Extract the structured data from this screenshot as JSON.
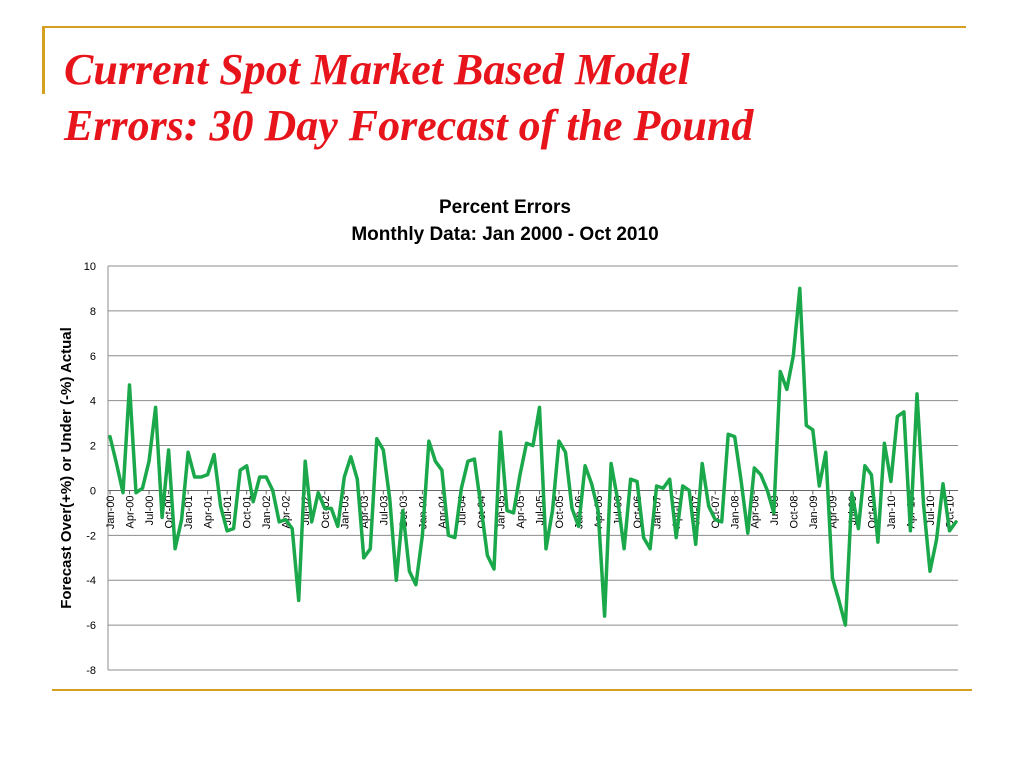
{
  "slide": {
    "title_line1": "Current Spot Market Based Model",
    "title_line2": "Errors: 30 Day Forecast of the Pound",
    "accent_color": "#d4a020",
    "title_color": "#e8141c"
  },
  "chart_data": {
    "type": "line",
    "title": "Percent Errors",
    "subtitle": "Monthly Data: Jan 2000 - Oct 2010",
    "xlabel": "",
    "ylabel": "Forecast Over(+%) or Under (-%) Actual",
    "ylim": [
      -8,
      10
    ],
    "yticks": [
      10,
      8,
      6,
      4,
      2,
      0,
      -2,
      -4,
      -6,
      -8
    ],
    "grid": true,
    "legend": "none",
    "line_color": "#1aa84a",
    "tick_labels": [
      "Jan-00",
      "Apr-00",
      "Jul-00",
      "Oct-00",
      "Jan-01",
      "Apr-01",
      "Jul-01",
      "Oct-01",
      "Jan-02",
      "Apr-02",
      "Jul-02",
      "Oct-02",
      "Jan-03",
      "Apr-03",
      "Jul-03",
      "Oct-03",
      "Jan-04",
      "Apr-04",
      "Jul-04",
      "Oct-04",
      "Jan-05",
      "Apr-05",
      "Jul-05",
      "Oct-05",
      "Jan-06",
      "Apr-06",
      "Jul-06",
      "Oct-06",
      "Jan-07",
      "Apr-07",
      "Jul-07",
      "Oct-07",
      "Jan-08",
      "Apr-08",
      "Jul-08",
      "Oct-08",
      "Jan-09",
      "Apr-09",
      "Jul-09",
      "Oct-09",
      "Jan-10",
      "Apr-10",
      "Jul-10",
      "Oct-10"
    ],
    "series": [
      {
        "values": [
          2.4,
          1.2,
          -0.1,
          4.7,
          -0.1,
          0.1,
          1.3,
          3.7,
          -1.2,
          1.8,
          -2.6,
          -1.3,
          1.7,
          0.6,
          0.6,
          0.7,
          1.6,
          -0.7,
          -1.8,
          -1.7,
          0.9,
          1.1,
          -0.5,
          0.6,
          0.6,
          0.0,
          -1.4,
          -1.3,
          -1.7,
          -4.9,
          1.3,
          -1.4,
          -0.1,
          -0.8,
          -0.8,
          -1.6,
          0.6,
          1.5,
          0.5,
          -3.0,
          -2.6,
          2.3,
          1.8,
          -0.4,
          -4.0,
          -0.9,
          -3.6,
          -4.2,
          -2.0,
          2.2,
          1.3,
          0.9,
          -2.0,
          -2.1,
          0.1,
          1.3,
          1.4,
          -0.7,
          -2.9,
          -3.5,
          2.6,
          -0.9,
          -1.0,
          0.7,
          2.1,
          2.0,
          3.7,
          -2.6,
          -0.9,
          2.2,
          1.7,
          -0.8,
          -1.6,
          1.1,
          0.3,
          -0.9,
          -5.6,
          1.2,
          -0.4,
          -2.6,
          0.5,
          0.4,
          -2.1,
          -2.6,
          0.2,
          0.1,
          0.5,
          -2.1,
          0.2,
          0.0,
          -2.4,
          1.2,
          -0.7,
          -1.3,
          -1.4,
          2.5,
          2.4,
          0.4,
          -1.9,
          1.0,
          0.7,
          0.0,
          -1.0,
          5.3,
          4.5,
          6.0,
          9.0,
          2.9,
          2.7,
          0.2,
          1.7,
          -3.9,
          -4.9,
          -6.0,
          -0.1,
          -1.7,
          1.1,
          0.7,
          -2.3,
          2.1,
          0.4,
          3.3,
          3.5,
          -1.8,
          4.3,
          -0.6,
          -3.6,
          -2.2,
          0.3,
          -1.8,
          -1.4
        ]
      }
    ]
  }
}
